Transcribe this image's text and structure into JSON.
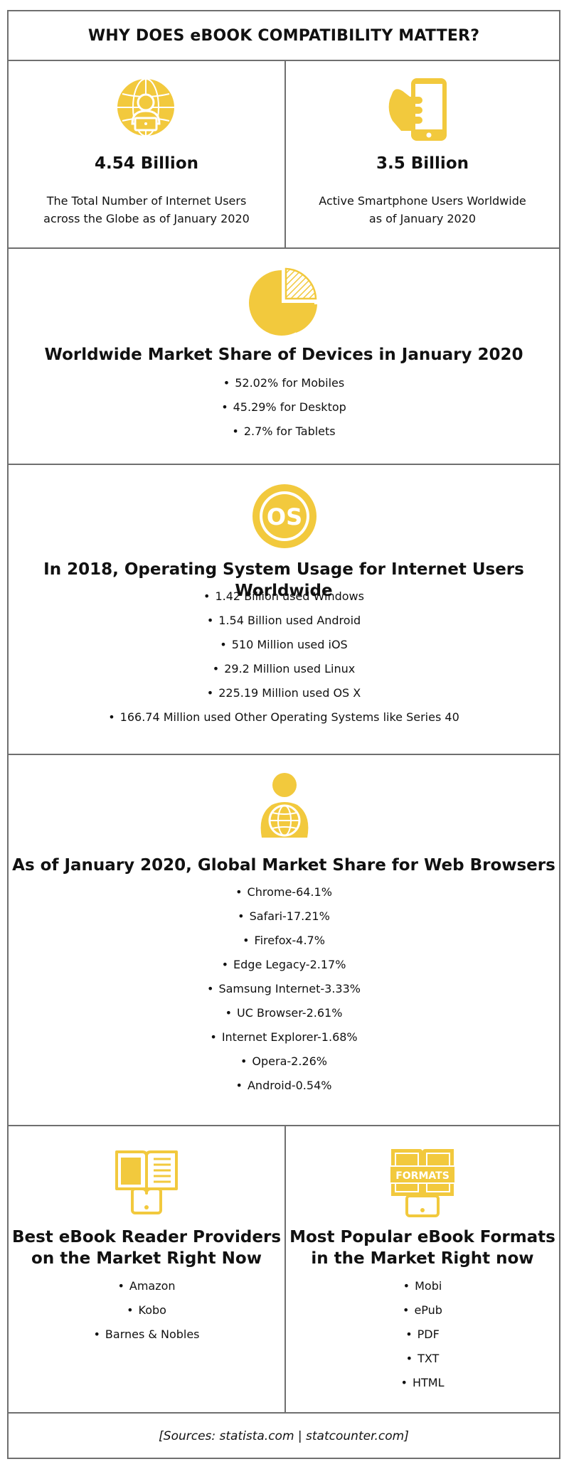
{
  "header": {
    "title": "WHY DOES eBOOK COMPATIBILITY MATTER?"
  },
  "stats": [
    {
      "value": "4.54 Billion",
      "line1": "The Total Number of Internet Users",
      "line2": "across the Globe as of January 2020",
      "icon": "globe-user-laptop-icon"
    },
    {
      "value": "3.5 Billion",
      "line1": "Active Smartphone Users Worldwide",
      "line2": "as of January 2020",
      "icon": "hand-smartphone-icon"
    }
  ],
  "devices": {
    "icon": "pie-chart-icon",
    "heading": "Worldwide Market Share of Devices in January 2020",
    "items": [
      "52.02% for Mobiles",
      "45.29% for Desktop",
      "2.7% for Tablets"
    ]
  },
  "os": {
    "icon": "os-circle-icon",
    "icon_text": "OS",
    "heading": "In 2018, Operating System Usage for Internet Users Worldwide",
    "items": [
      "1.42 Billion used Windows",
      "1.54 Billion used Android",
      "510 Million used iOS",
      "29.2 Million used Linux",
      "225.19 Million used OS X",
      "166.74 Million used Other Operating Systems like Series 40"
    ]
  },
  "browsers": {
    "icon": "person-globe-icon",
    "heading": "As of January 2020, Global Market Share for Web Browsers",
    "items": [
      "Chrome-64.1%",
      "Safari-17.21%",
      "Firefox-4.7%",
      "Edge Legacy-2.17%",
      "Samsung Internet-3.33%",
      "UC Browser-2.61%",
      "Internet Explorer-1.68%",
      "Opera-2.26%",
      "Android-0.54%"
    ]
  },
  "providers": {
    "icon": "ebook-reader-icon",
    "heading_line1": "Best eBook Reader Providers",
    "heading_line2": "on the Market Right Now",
    "items": [
      "Amazon",
      "Kobo",
      "Barnes & Nobles"
    ]
  },
  "formats": {
    "icon": "formats-book-icon",
    "icon_text": "FORMATS",
    "heading_line1": "Most Popular eBook Formats",
    "heading_line2": "in the Market Right now",
    "items": [
      "Mobi",
      "ePub",
      "PDF",
      "TXT",
      "HTML"
    ]
  },
  "footer": {
    "sources": "[Sources: statista.com | statcounter.com]"
  },
  "colors": {
    "accent": "#F2C93D",
    "border": "#6F6F6F",
    "text": "#111111"
  }
}
